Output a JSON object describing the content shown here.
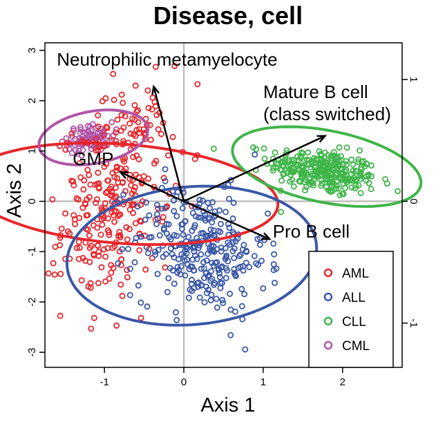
{
  "chart_data": {
    "type": "scatter",
    "title": "Disease, cell",
    "xlabel": "Axis 1",
    "ylabel": "Axis 2",
    "xlim": [
      -1.75,
      2.75
    ],
    "ylim": [
      -3.3,
      3.15
    ],
    "x_ticks": [
      "-1",
      "0",
      "1",
      "2"
    ],
    "x_tick_values": [
      -1,
      0,
      1,
      2
    ],
    "y_ticks": [
      "-3",
      "-2",
      "-1",
      "0",
      "1",
      "2",
      "3"
    ],
    "y_tick_values": [
      -3,
      -2,
      -1,
      0,
      1,
      2,
      3
    ],
    "secondary_y_ticks": [
      "1",
      "0",
      "-1"
    ],
    "secondary_y_tick_values": [
      1,
      0,
      -1
    ],
    "secondary_y_tick_positions": [
      2.42,
      0,
      -2.42
    ],
    "grid": false,
    "reference_lines": {
      "x": 0,
      "y": 0,
      "color": "#bfbfbf"
    },
    "legend_position": "bottom-right",
    "series": [
      {
        "name": "AML",
        "color": "#e8262b",
        "cluster": {
          "center": [
            -0.85,
            0.15
          ],
          "spread": [
            0.34,
            1.0
          ],
          "correlation": 0.3,
          "count": 300
        },
        "ellipse": {
          "center": [
            -0.78,
            0.15
          ],
          "semi_axes": [
            0.98,
            1.98
          ],
          "angle_deg": 82
        }
      },
      {
        "name": "ALL",
        "color": "#3a58a8",
        "cluster": {
          "center": [
            0.2,
            -0.95
          ],
          "spread": [
            0.42,
            0.62
          ],
          "correlation": -0.2,
          "count": 300
        },
        "ellipse": {
          "center": [
            0.1,
            -1.08
          ],
          "semi_axes": [
            1.35,
            1.6
          ],
          "angle_deg": -70
        }
      },
      {
        "name": "CLL",
        "color": "#3fb54a",
        "cluster": {
          "center": [
            1.75,
            0.6
          ],
          "spread": [
            0.34,
            0.24
          ],
          "correlation": -0.35,
          "count": 280
        },
        "ellipse": {
          "center": [
            1.8,
            0.69
          ],
          "semi_axes": [
            1.25,
            0.69
          ],
          "angle_deg": -22
        }
      },
      {
        "name": "CML",
        "color": "#b155a8",
        "cluster": {
          "center": [
            -1.18,
            1.25
          ],
          "spread": [
            0.14,
            0.14
          ],
          "correlation": 0.2,
          "count": 90
        },
        "ellipse": {
          "center": [
            -1.14,
            1.27
          ],
          "semi_axes": [
            0.72,
            0.5
          ],
          "angle_deg": 25
        }
      }
    ],
    "loadings": [
      {
        "label": "Neutrophilic metamyelocyte",
        "end": [
          -0.38,
          2.28
        ],
        "label_at": [
          -1.6,
          2.7
        ],
        "anchor": "start"
      },
      {
        "label": "Mature B cell",
        "label_line2": "(class switched)",
        "end": [
          1.78,
          1.3
        ],
        "label_at": [
          1.0,
          2.05
        ],
        "anchor": "start"
      },
      {
        "label": "GMP",
        "end": [
          -0.8,
          0.58
        ],
        "label_at": [
          -1.4,
          0.72
        ],
        "anchor": "start"
      },
      {
        "label": "Pro B cell",
        "end": [
          1.08,
          -0.75
        ],
        "label_at": [
          1.12,
          -0.72
        ],
        "anchor": "start"
      }
    ]
  }
}
